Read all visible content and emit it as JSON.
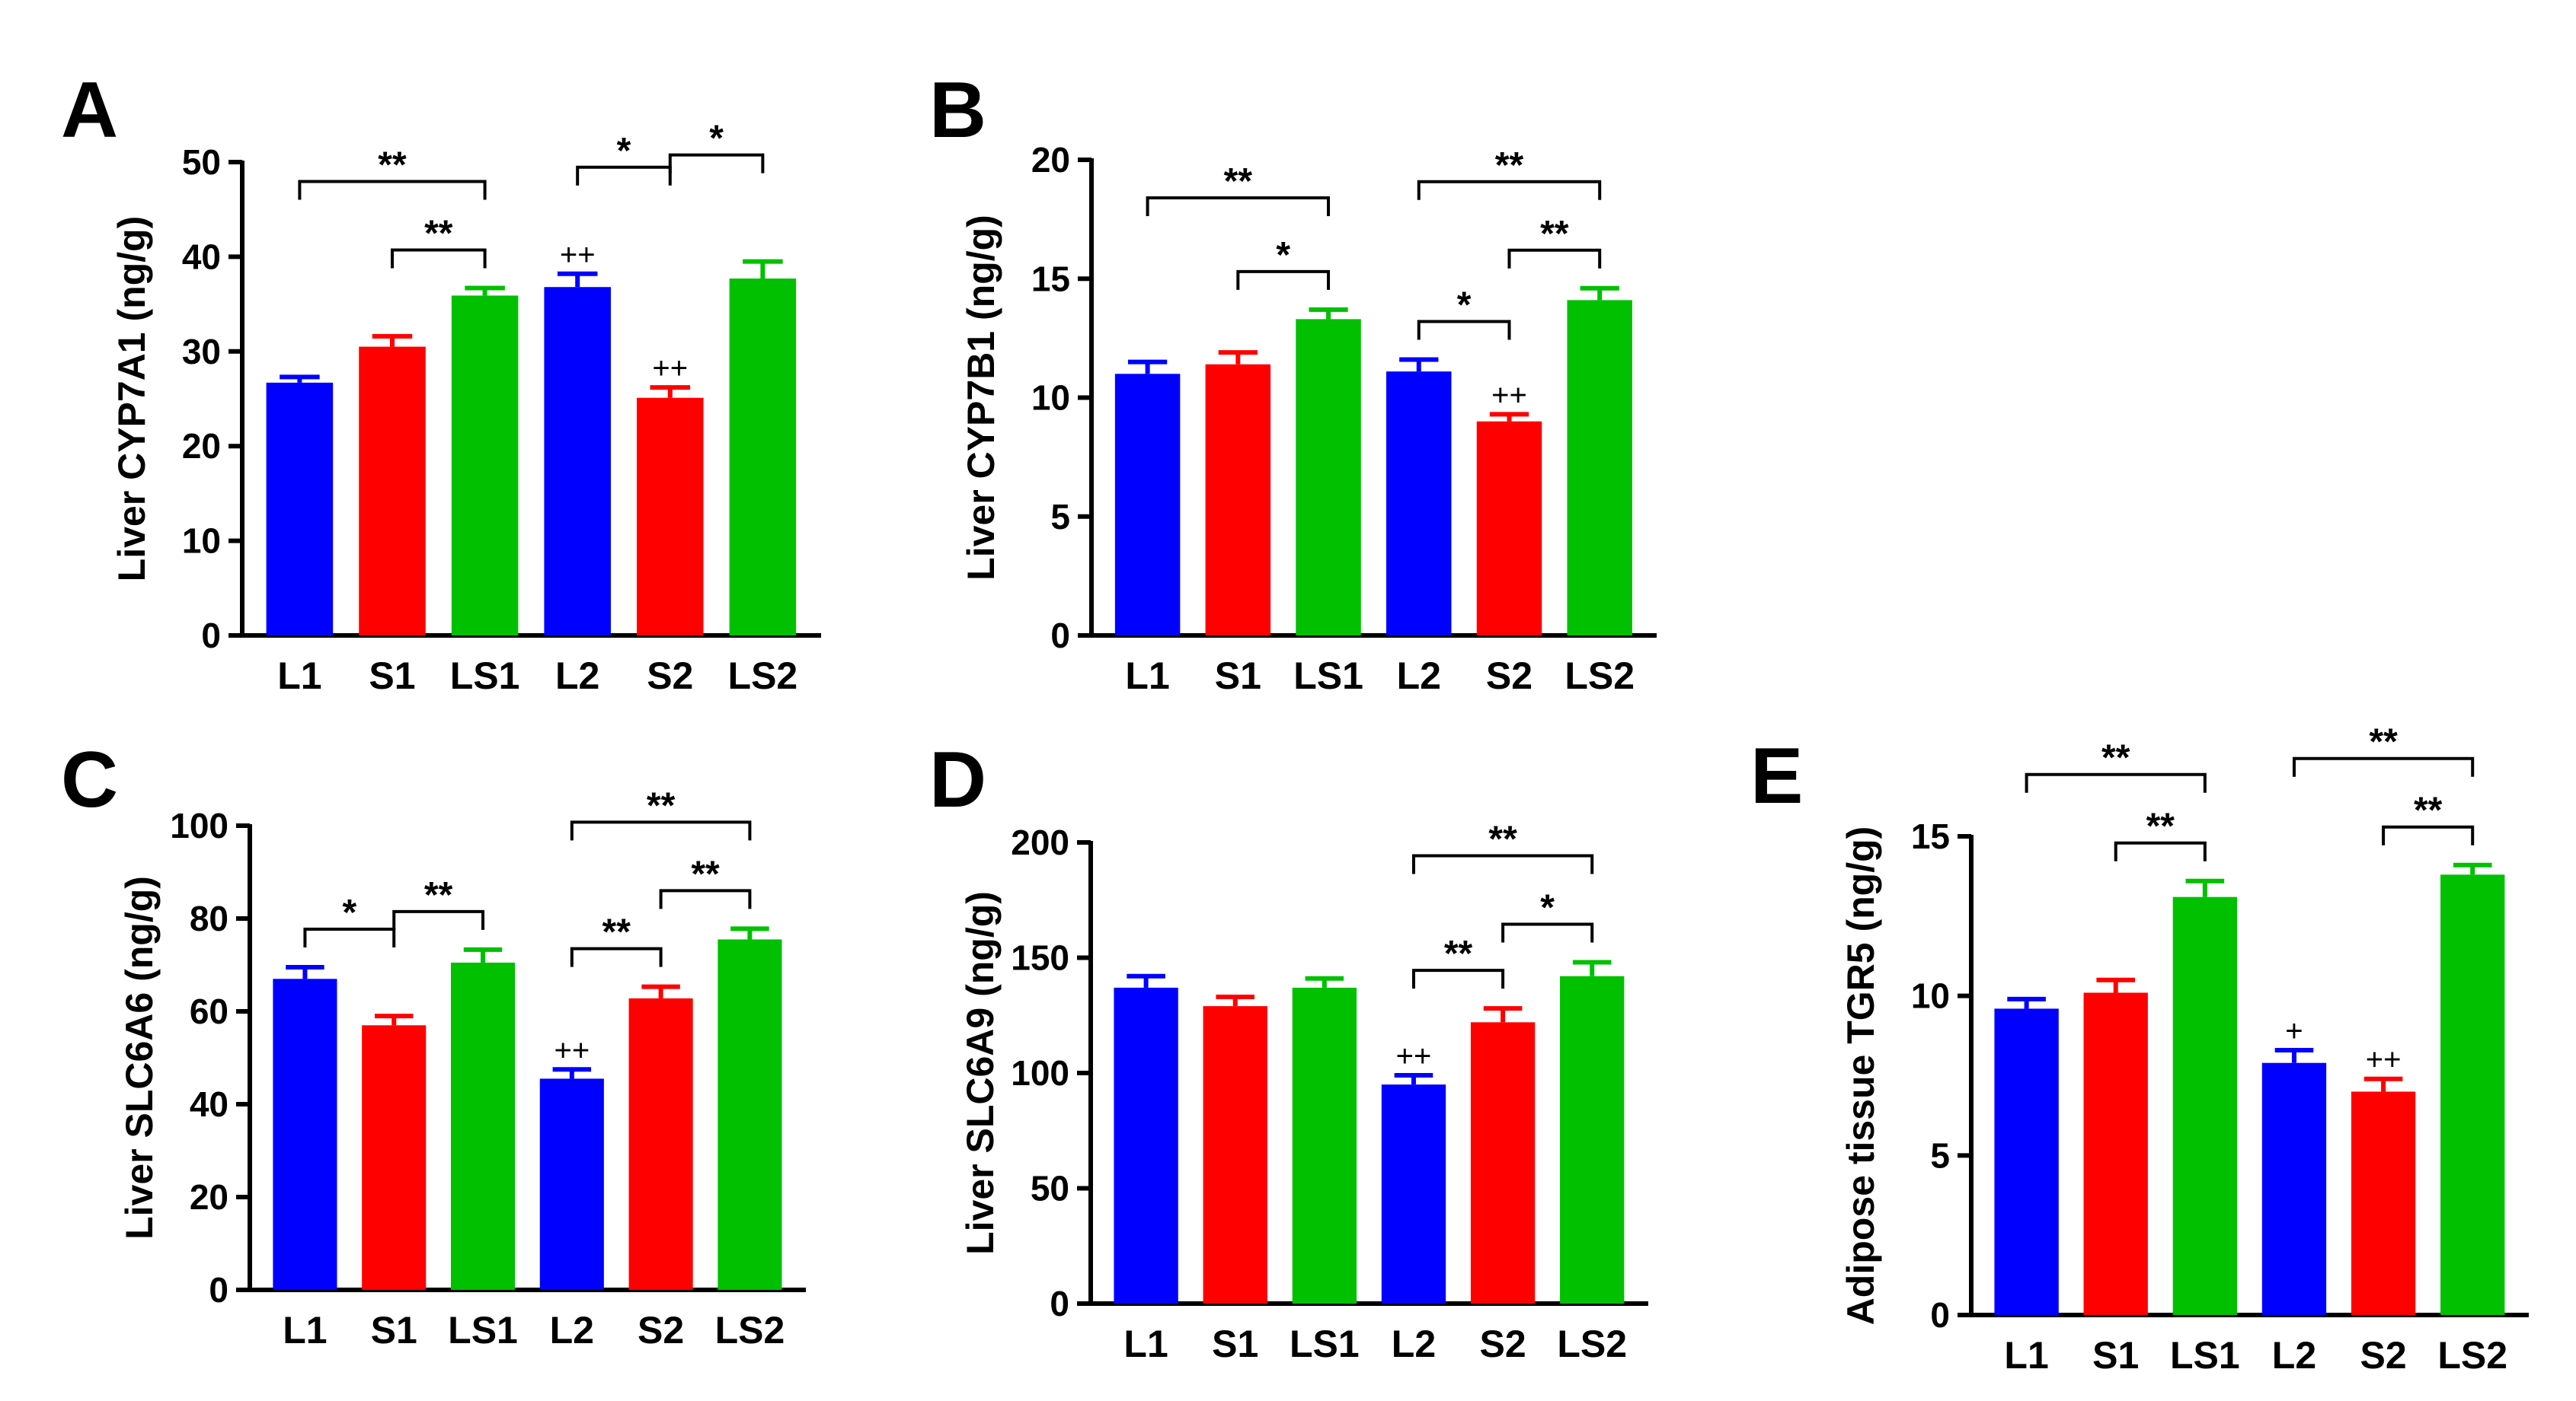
{
  "chart_data": [
    {
      "panel_label": "A",
      "type": "bar",
      "ylabel": "Liver CYP7A1 (ng/g)",
      "categories": [
        "L1",
        "S1",
        "LS1",
        "L2",
        "S2",
        "LS2"
      ],
      "values": [
        26.7,
        30.5,
        35.9,
        36.8,
        25.1,
        37.7
      ],
      "errors": [
        0.6,
        1.1,
        0.8,
        1.4,
        1.1,
        1.8
      ],
      "colors": [
        "#0000ff",
        "#ff0000",
        "#00c000",
        "#0000ff",
        "#ff0000",
        "#00c000"
      ],
      "ylim": [
        0,
        50
      ],
      "yticks": [
        0,
        10,
        20,
        30,
        40,
        50
      ],
      "bar_labels": [
        "",
        "",
        "",
        "++",
        "++",
        ""
      ],
      "significance": [
        {
          "from": 0,
          "to": 2,
          "level": 1,
          "text": "**"
        },
        {
          "from": 1,
          "to": 2,
          "level": 0,
          "text": "**"
        },
        {
          "from": 3,
          "to": 4,
          "level": 1,
          "text": "*"
        },
        {
          "from": 4,
          "to": 5,
          "level": 1,
          "text": "*"
        }
      ]
    },
    {
      "panel_label": "B",
      "type": "bar",
      "ylabel": "Liver CYP7B1 (ng/g)",
      "categories": [
        "L1",
        "S1",
        "LS1",
        "L2",
        "S2",
        "LS2"
      ],
      "values": [
        11.0,
        11.4,
        13.3,
        11.1,
        9.0,
        14.1
      ],
      "errors": [
        0.5,
        0.5,
        0.4,
        0.5,
        0.3,
        0.5
      ],
      "colors": [
        "#0000ff",
        "#ff0000",
        "#00c000",
        "#0000ff",
        "#ff0000",
        "#00c000"
      ],
      "ylim": [
        0,
        20
      ],
      "yticks": [
        0,
        5,
        10,
        15,
        20
      ],
      "bar_labels": [
        "",
        "",
        "",
        "",
        "++",
        ""
      ],
      "significance": [
        {
          "from": 0,
          "to": 2,
          "level": 1,
          "text": "**"
        },
        {
          "from": 1,
          "to": 2,
          "level": 0,
          "text": "*"
        },
        {
          "from": 3,
          "to": 5,
          "level": 1,
          "text": "**"
        },
        {
          "from": 3,
          "to": 4,
          "level": 0,
          "text": "*"
        },
        {
          "from": 4,
          "to": 5,
          "level": 0,
          "text": "**"
        }
      ]
    },
    {
      "panel_label": "C",
      "type": "bar",
      "ylabel": "Liver SLC6A6 (ng/g)",
      "categories": [
        "L1",
        "S1",
        "LS1",
        "L2",
        "S2",
        "LS2"
      ],
      "values": [
        67.0,
        57.0,
        70.5,
        45.5,
        62.8,
        75.5
      ],
      "errors": [
        2.5,
        2.0,
        2.8,
        2.0,
        2.5,
        2.3
      ],
      "colors": [
        "#0000ff",
        "#ff0000",
        "#00c000",
        "#0000ff",
        "#ff0000",
        "#00c000"
      ],
      "ylim": [
        0,
        100
      ],
      "yticks": [
        0,
        20,
        40,
        60,
        80,
        100
      ],
      "bar_labels": [
        "",
        "",
        "",
        "++",
        "",
        ""
      ],
      "significance": [
        {
          "from": 0,
          "to": 1,
          "level": 0,
          "text": "*"
        },
        {
          "from": 1,
          "to": 2,
          "level": 0,
          "text": "**"
        },
        {
          "from": 3,
          "to": 5,
          "level": 1,
          "text": "**"
        },
        {
          "from": 3,
          "to": 4,
          "level": 0,
          "text": "**"
        },
        {
          "from": 4,
          "to": 5,
          "level": 0,
          "text": "**"
        }
      ]
    },
    {
      "panel_label": "D",
      "type": "bar",
      "ylabel": "Liver SLC6A9 (ng/g)",
      "categories": [
        "L1",
        "S1",
        "LS1",
        "L2",
        "S2",
        "LS2"
      ],
      "values": [
        137,
        129,
        137,
        95,
        122,
        142
      ],
      "errors": [
        5,
        4,
        4,
        4,
        6,
        6
      ],
      "colors": [
        "#0000ff",
        "#ff0000",
        "#00c000",
        "#0000ff",
        "#ff0000",
        "#00c000"
      ],
      "ylim": [
        0,
        200
      ],
      "yticks": [
        0,
        50,
        100,
        150,
        200
      ],
      "bar_labels": [
        "",
        "",
        "",
        "++",
        "",
        ""
      ],
      "significance": [
        {
          "from": 3,
          "to": 5,
          "level": 1,
          "text": "**"
        },
        {
          "from": 3,
          "to": 4,
          "level": 0,
          "text": "**"
        },
        {
          "from": 4,
          "to": 5,
          "level": 0,
          "text": "*"
        }
      ]
    },
    {
      "panel_label": "E",
      "type": "bar",
      "ylabel": "Adipose tissue TGR5 (ng/g)",
      "categories": [
        "L1",
        "S1",
        "LS1",
        "L2",
        "S2",
        "LS2"
      ],
      "values": [
        9.6,
        10.1,
        13.1,
        7.9,
        7.0,
        13.8
      ],
      "errors": [
        0.3,
        0.4,
        0.5,
        0.4,
        0.4,
        0.3
      ],
      "colors": [
        "#0000ff",
        "#ff0000",
        "#00c000",
        "#0000ff",
        "#ff0000",
        "#00c000"
      ],
      "ylim": [
        0,
        15
      ],
      "yticks": [
        0,
        5,
        10,
        15
      ],
      "bar_labels": [
        "",
        "",
        "",
        "+",
        "++",
        ""
      ],
      "significance": [
        {
          "from": 0,
          "to": 2,
          "level": 1,
          "text": "**"
        },
        {
          "from": 1,
          "to": 2,
          "level": 0,
          "text": "**"
        },
        {
          "from": 3,
          "to": 5,
          "level": 1,
          "text": "**"
        },
        {
          "from": 4,
          "to": 5,
          "level": 0,
          "text": "**"
        }
      ]
    }
  ]
}
